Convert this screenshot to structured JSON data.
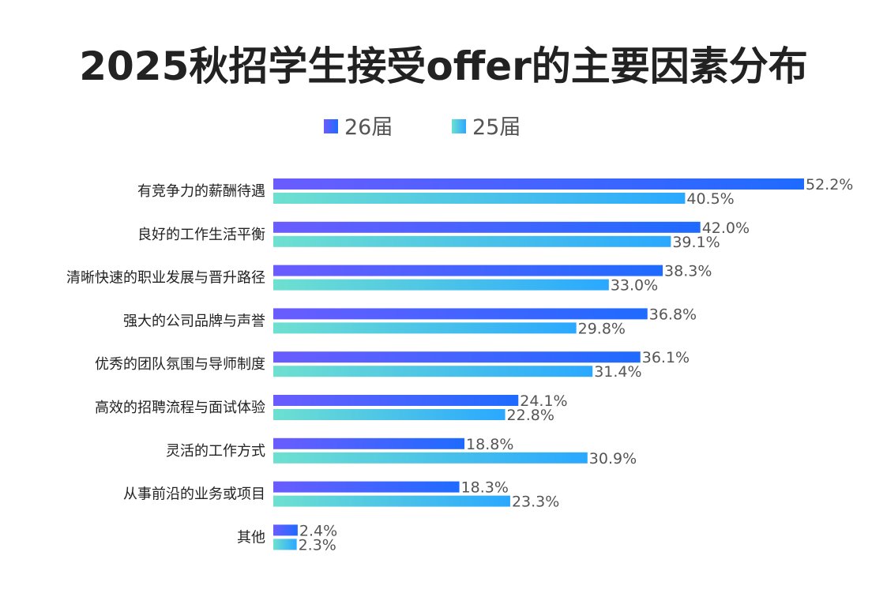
{
  "chart_data": {
    "type": "bar",
    "orientation": "horizontal",
    "title": "2025秋招学生接受offer的主要因素分布",
    "categories": [
      "有竞争力的薪酬待遇",
      "良好的工作生活平衡",
      "清晰快速的职业发展与晋升路径",
      "强大的公司品牌与声誉",
      "优秀的团队氛围与导师制度",
      "高效的招聘流程与面试体验",
      "灵活的工作方式",
      "从事前沿的业务或项目",
      "其他"
    ],
    "series": [
      {
        "name": "26届",
        "values": [
          52.2,
          42.0,
          38.3,
          36.8,
          36.1,
          24.1,
          18.8,
          18.3,
          2.4
        ],
        "labels": [
          "52.2%",
          "42.0%",
          "38.3%",
          "36.8%",
          "36.1%",
          "24.1%",
          "18.8%",
          "18.3%",
          "2.4%"
        ],
        "color_start": "#6a5cff",
        "color_end": "#1f6bff"
      },
      {
        "name": "25届",
        "values": [
          40.5,
          39.1,
          33.0,
          29.8,
          31.4,
          22.8,
          30.9,
          23.3,
          2.3
        ],
        "labels": [
          "40.5%",
          "39.1%",
          "33.0%",
          "29.8%",
          "31.4%",
          "22.8%",
          "30.9%",
          "23.3%",
          "2.3%"
        ],
        "color_start": "#6ee0d0",
        "color_end": "#2aa8ff"
      }
    ],
    "xlim": [
      0,
      52.2
    ],
    "legend_position": "top-center",
    "grid": false,
    "xlabel": "",
    "ylabel": ""
  }
}
